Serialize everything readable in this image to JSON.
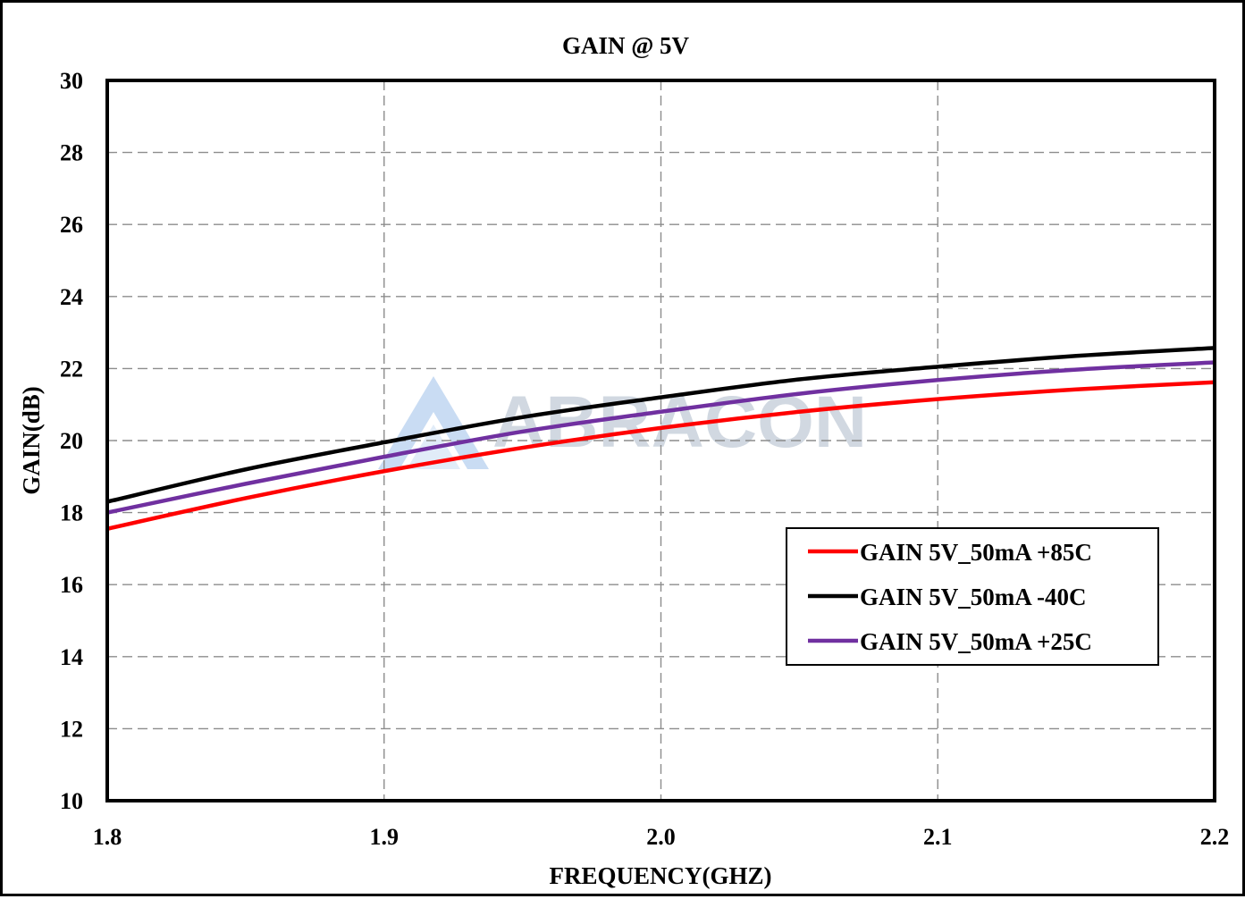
{
  "watermark": {
    "text": "ABRACON"
  },
  "chart_data": {
    "type": "line",
    "title": "GAIN @ 5V",
    "xlabel": "FREQUENCY(GHZ)",
    "ylabel": "GAIN(dB)",
    "xlim": [
      1.8,
      2.2
    ],
    "ylim": [
      10,
      30
    ],
    "xticks": [
      "1.8",
      "1.9",
      "2.0",
      "2.1",
      "2.2"
    ],
    "yticks": [
      "10",
      "12",
      "14",
      "16",
      "18",
      "20",
      "22",
      "24",
      "26",
      "28",
      "30"
    ],
    "grid": true,
    "legend_position": "lower-right",
    "x": [
      1.8,
      1.85,
      1.9,
      1.95,
      2.0,
      2.05,
      2.1,
      2.15,
      2.2
    ],
    "series": [
      {
        "name": "GAIN 5V_50mA +85C",
        "color": "#ff0000",
        "values": [
          17.55,
          18.4,
          19.15,
          19.8,
          20.35,
          20.8,
          21.15,
          21.42,
          21.62
        ]
      },
      {
        "name": "GAIN 5V_50mA -40C",
        "color": "#000000",
        "values": [
          18.3,
          19.2,
          19.95,
          20.65,
          21.2,
          21.7,
          22.05,
          22.35,
          22.57
        ]
      },
      {
        "name": "GAIN 5V_50mA +25C",
        "color": "#7030a0",
        "values": [
          18.0,
          18.8,
          19.55,
          20.25,
          20.8,
          21.3,
          21.68,
          21.97,
          22.17
        ]
      }
    ]
  }
}
